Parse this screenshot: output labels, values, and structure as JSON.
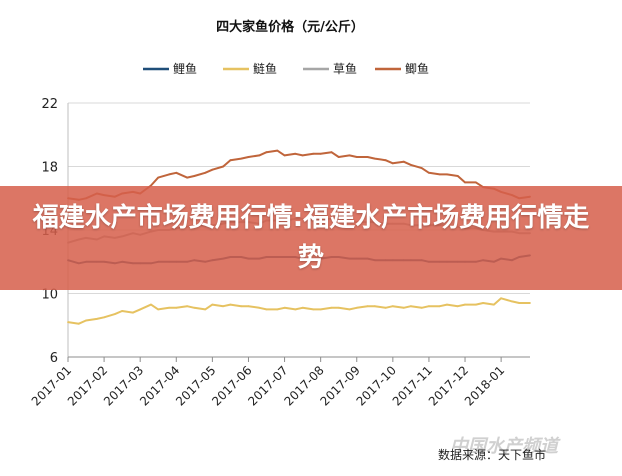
{
  "banner": {
    "headline": "福建水产市场费用行情:福建水产市场费用行情走势"
  },
  "watermark": "中国水产频道",
  "footer": "数据来源：天下鱼市",
  "chart_data": {
    "type": "line",
    "title": "四大家鱼价格（元/公斤）",
    "xlabel": "",
    "ylabel": "",
    "ylim": [
      6,
      22
    ],
    "yticks": [
      6,
      10,
      14,
      18,
      22
    ],
    "xticks": [
      "2017-01",
      "2017-02",
      "2017-03",
      "2017-04",
      "2017-05",
      "2017-06",
      "2017-07",
      "2017-08",
      "2017-09",
      "2017-10",
      "2017-11",
      "2017-12",
      "2018-01"
    ],
    "grid": "horizontal",
    "legend_position": "top",
    "series": [
      {
        "name": "鲤鱼",
        "color": "#1f4e79",
        "x": [
          0,
          0.3,
          0.5,
          0.8,
          1,
          1.3,
          1.5,
          1.8,
          2,
          2.3,
          2.5,
          2.8,
          3,
          3.3,
          3.5,
          3.8,
          4,
          4.3,
          4.5,
          4.8,
          5,
          5.3,
          5.5,
          5.8,
          6,
          6.3,
          6.5,
          6.8,
          7,
          7.3,
          7.5,
          7.8,
          8,
          8.3,
          8.5,
          8.8,
          9,
          9.3,
          9.5,
          9.8,
          10,
          10.3,
          10.5,
          10.8,
          11,
          11.3,
          11.5,
          11.8,
          12,
          12.3,
          12.5,
          12.8
        ],
        "values": [
          12.1,
          11.9,
          12.0,
          12.0,
          12.0,
          11.9,
          12.0,
          11.9,
          11.9,
          11.9,
          12.0,
          12.0,
          12.0,
          12.0,
          12.1,
          12.0,
          12.1,
          12.2,
          12.3,
          12.3,
          12.2,
          12.2,
          12.3,
          12.3,
          12.3,
          12.3,
          12.2,
          12.2,
          12.2,
          12.3,
          12.3,
          12.2,
          12.2,
          12.2,
          12.1,
          12.1,
          12.1,
          12.1,
          12.1,
          12.1,
          12.0,
          12.0,
          12.0,
          12.0,
          12.0,
          12.0,
          12.1,
          12.0,
          12.2,
          12.1,
          12.3,
          12.4
        ]
      },
      {
        "name": "鲢鱼",
        "color": "#e6c261",
        "x": [
          0,
          0.3,
          0.5,
          0.8,
          1,
          1.3,
          1.5,
          1.8,
          2,
          2.3,
          2.5,
          2.8,
          3,
          3.3,
          3.5,
          3.8,
          4,
          4.3,
          4.5,
          4.8,
          5,
          5.3,
          5.5,
          5.8,
          6,
          6.3,
          6.5,
          6.8,
          7,
          7.3,
          7.5,
          7.8,
          8,
          8.3,
          8.5,
          8.8,
          9,
          9.3,
          9.5,
          9.8,
          10,
          10.3,
          10.5,
          10.8,
          11,
          11.3,
          11.5,
          11.8,
          12,
          12.3,
          12.5,
          12.8
        ],
        "values": [
          8.2,
          8.1,
          8.3,
          8.4,
          8.5,
          8.7,
          8.9,
          8.8,
          9.0,
          9.3,
          9.0,
          9.1,
          9.1,
          9.2,
          9.1,
          9.0,
          9.3,
          9.2,
          9.3,
          9.2,
          9.2,
          9.1,
          9.0,
          9.0,
          9.1,
          9.0,
          9.1,
          9.0,
          9.0,
          9.1,
          9.1,
          9.0,
          9.1,
          9.2,
          9.2,
          9.1,
          9.2,
          9.1,
          9.2,
          9.1,
          9.2,
          9.2,
          9.3,
          9.2,
          9.3,
          9.3,
          9.4,
          9.3,
          9.7,
          9.5,
          9.4,
          9.4
        ]
      },
      {
        "name": "草鱼",
        "color": "#a6a6a6",
        "x": [
          0,
          0.3,
          0.5,
          0.8,
          1,
          1.3,
          1.5,
          1.8,
          2,
          2.3,
          2.5,
          2.8,
          3,
          3.3,
          3.5,
          3.8,
          4,
          4.3,
          4.5,
          4.8,
          5,
          5.3,
          5.5,
          5.8,
          6,
          6.3,
          6.5,
          6.8,
          7,
          7.3,
          7.5,
          7.8,
          8,
          8.3,
          8.5,
          8.8,
          9,
          9.3,
          9.5,
          9.8,
          10,
          10.3,
          10.5,
          10.8,
          11,
          11.3,
          11.5,
          11.8,
          12,
          12.3,
          12.5,
          12.8
        ],
        "values": [
          13.2,
          13.4,
          13.5,
          13.4,
          13.6,
          13.5,
          13.6,
          13.8,
          13.7,
          13.9,
          14.0,
          14.0,
          14.1,
          14.2,
          14.3,
          14.3,
          14.3,
          14.4,
          14.5,
          14.5,
          14.5,
          14.4,
          14.6,
          14.6,
          14.6,
          14.7,
          14.7,
          14.6,
          14.7,
          14.7,
          14.6,
          14.6,
          14.5,
          14.5,
          14.5,
          14.4,
          14.4,
          14.4,
          14.3,
          14.3,
          14.3,
          14.3,
          14.3,
          14.2,
          14.1,
          14.1,
          14.0,
          13.9,
          13.9,
          13.9,
          13.8,
          13.8
        ]
      },
      {
        "name": "鲫鱼",
        "color": "#c0653b",
        "x": [
          0,
          0.3,
          0.5,
          0.8,
          1,
          1.3,
          1.5,
          1.8,
          2,
          2.3,
          2.5,
          2.8,
          3,
          3.3,
          3.5,
          3.8,
          4,
          4.3,
          4.5,
          4.8,
          5,
          5.3,
          5.5,
          5.8,
          6,
          6.3,
          6.5,
          6.8,
          7,
          7.3,
          7.5,
          7.8,
          8,
          8.3,
          8.5,
          8.8,
          9,
          9.3,
          9.5,
          9.8,
          10,
          10.3,
          10.5,
          10.8,
          11,
          11.3,
          11.5,
          11.8,
          12,
          12.3,
          12.5,
          12.8
        ],
        "values": [
          16.0,
          15.9,
          16.0,
          16.3,
          16.2,
          16.1,
          16.3,
          16.4,
          16.3,
          16.8,
          17.3,
          17.5,
          17.6,
          17.3,
          17.4,
          17.6,
          17.8,
          18.0,
          18.4,
          18.5,
          18.6,
          18.7,
          18.9,
          19.0,
          18.7,
          18.8,
          18.7,
          18.8,
          18.8,
          18.9,
          18.6,
          18.7,
          18.6,
          18.6,
          18.5,
          18.4,
          18.2,
          18.3,
          18.1,
          17.9,
          17.6,
          17.5,
          17.5,
          17.4,
          17.0,
          17.0,
          16.7,
          16.6,
          16.4,
          16.2,
          16.0,
          16.1
        ]
      }
    ]
  }
}
